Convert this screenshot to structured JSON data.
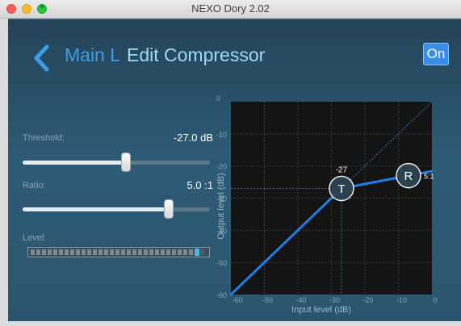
{
  "window": {
    "title": "NEXO Dory 2.02"
  },
  "header": {
    "back_icon": "chevron-left-icon",
    "channel": "Main L",
    "title": "Edit Compressor",
    "on_label": "On"
  },
  "controls": {
    "threshold": {
      "label": "Threshold:",
      "value_text": "-27.0 dB",
      "value": -27.0,
      "min": -60,
      "max": 0
    },
    "ratio": {
      "label": "Ratio:",
      "value_text": "5.0 :1",
      "fraction": 0.78
    },
    "level": {
      "label": "Level:",
      "fraction": 0.96
    }
  },
  "graph": {
    "x_axis_label": "Input level (dB)",
    "y_axis_label": "Output level (dB)",
    "x_ticks": [
      "-60",
      "-50",
      "-40",
      "-30",
      "-20",
      "-10",
      "0"
    ],
    "y_ticks": [
      "0",
      "-10",
      "-20",
      "-30",
      "-40",
      "-50",
      "-60"
    ],
    "threshold_point": {
      "label": "T",
      "input_db": -27,
      "output_db": -27,
      "readout": "-27"
    },
    "ratio_point": {
      "label": "R",
      "input_db": -7,
      "output_db": -23,
      "readout": "5:1"
    }
  },
  "colors": {
    "accent": "#3a8ee6",
    "curve": "#1f7fe6",
    "plot_bg": "#141414"
  }
}
